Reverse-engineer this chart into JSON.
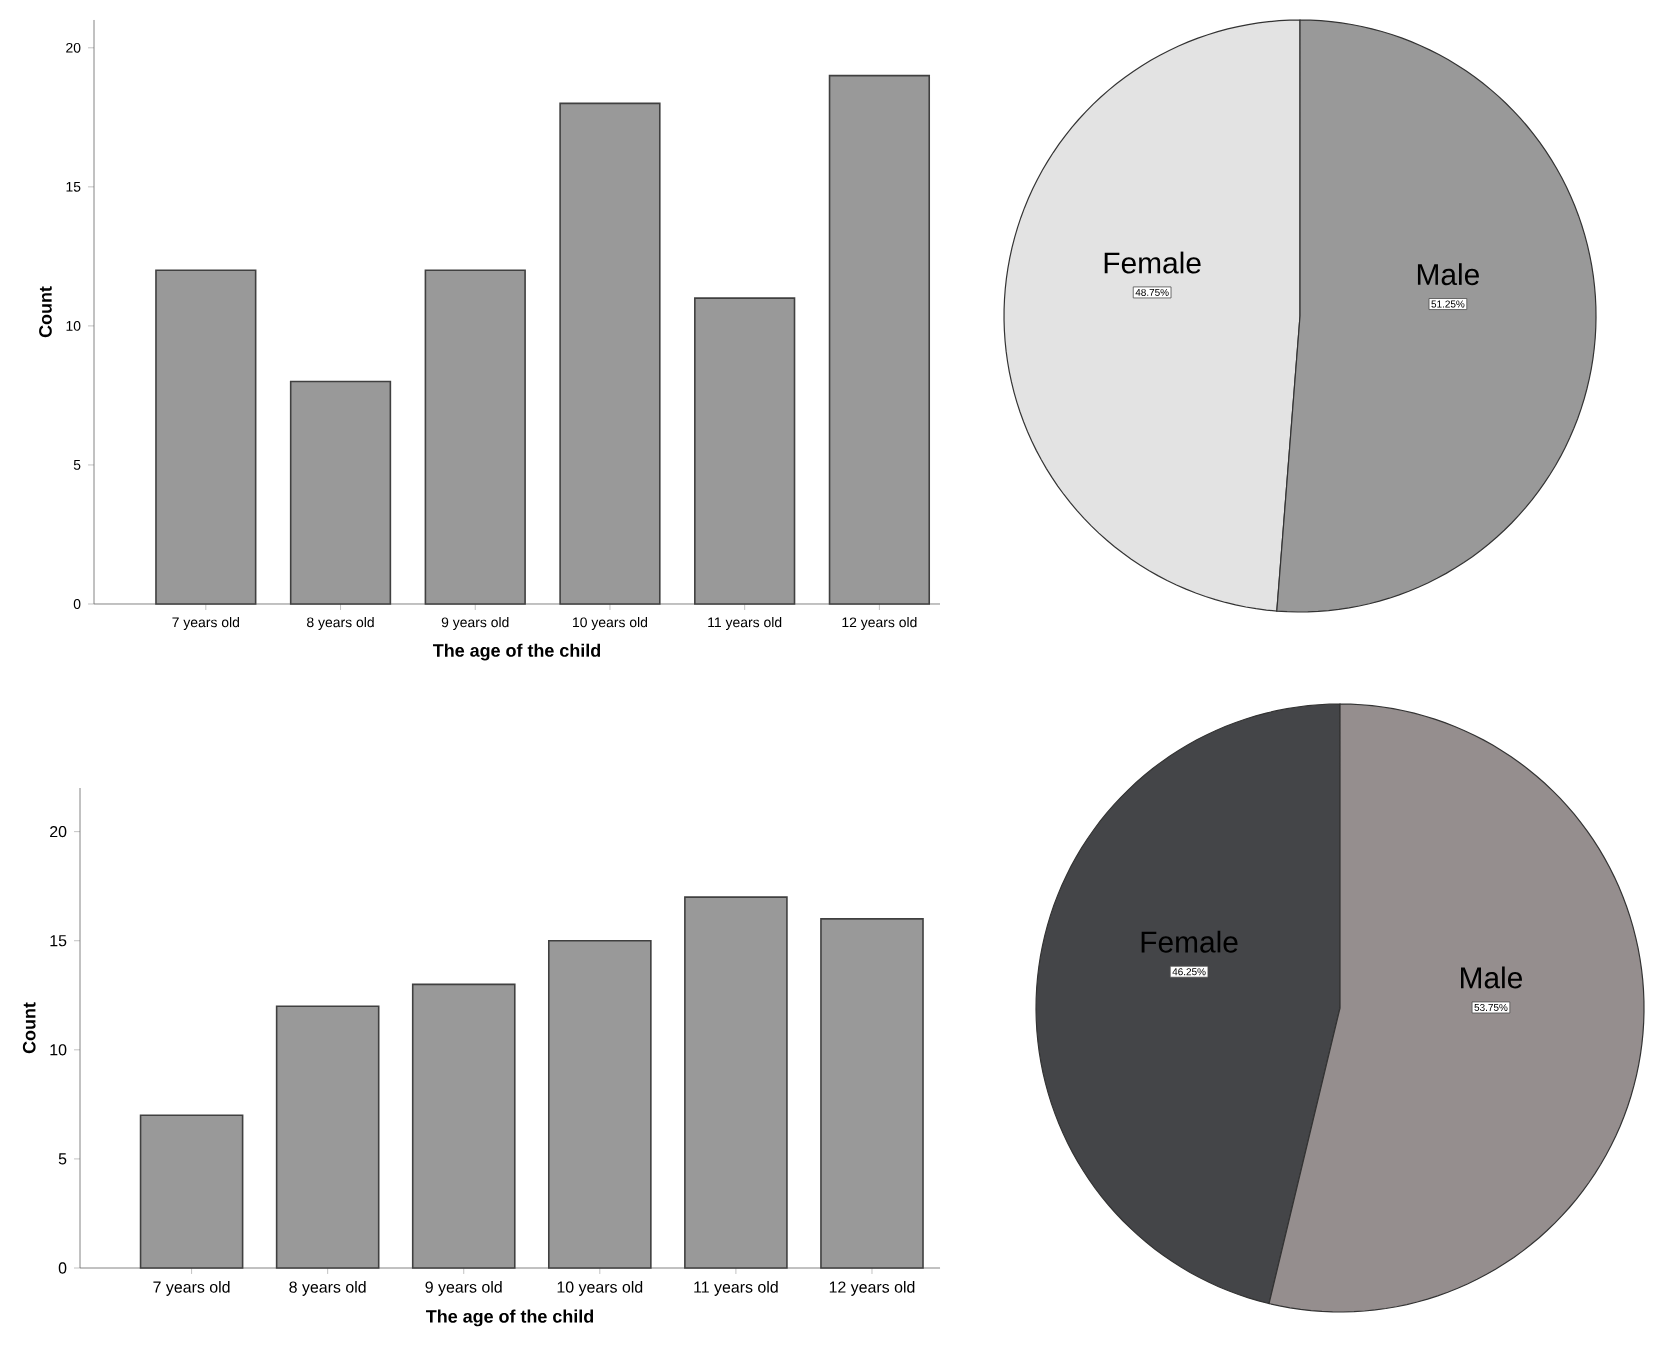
{
  "chart_data": [
    {
      "type": "bar",
      "categories": [
        "7 years old",
        "8 years old",
        "9 years old",
        "10 years old",
        "11 years old",
        "12 years old"
      ],
      "values": [
        12,
        8,
        12,
        18,
        11,
        19
      ],
      "color": "#999999",
      "xlabel": "The age of the child",
      "ylabel": "Count",
      "ylim": [
        0,
        21
      ],
      "yticks": [
        0,
        5,
        10,
        15,
        20
      ]
    },
    {
      "type": "pie",
      "categories": [
        "Female",
        "Male"
      ],
      "values": [
        48.75,
        51.25
      ],
      "colors": [
        "#e3e3e3",
        "#999999"
      ],
      "value_labels": [
        "48.75%",
        "51.25%"
      ]
    },
    {
      "type": "bar",
      "categories": [
        "7 years old",
        "8 years old",
        "9 years old",
        "10 years old",
        "11 years old",
        "12 years old"
      ],
      "values": [
        7,
        12,
        13,
        15,
        17,
        16
      ],
      "color": "#999999",
      "xlabel": "The age of the child",
      "ylabel": "Count",
      "ylim": [
        0,
        22
      ],
      "yticks": [
        0,
        5,
        10,
        15,
        20
      ]
    },
    {
      "type": "pie",
      "categories": [
        "Female",
        "Male"
      ],
      "values": [
        46.25,
        53.75
      ],
      "colors": [
        "#444548",
        "#958e8e"
      ],
      "value_labels": [
        "46.25%",
        "53.75%"
      ]
    }
  ]
}
